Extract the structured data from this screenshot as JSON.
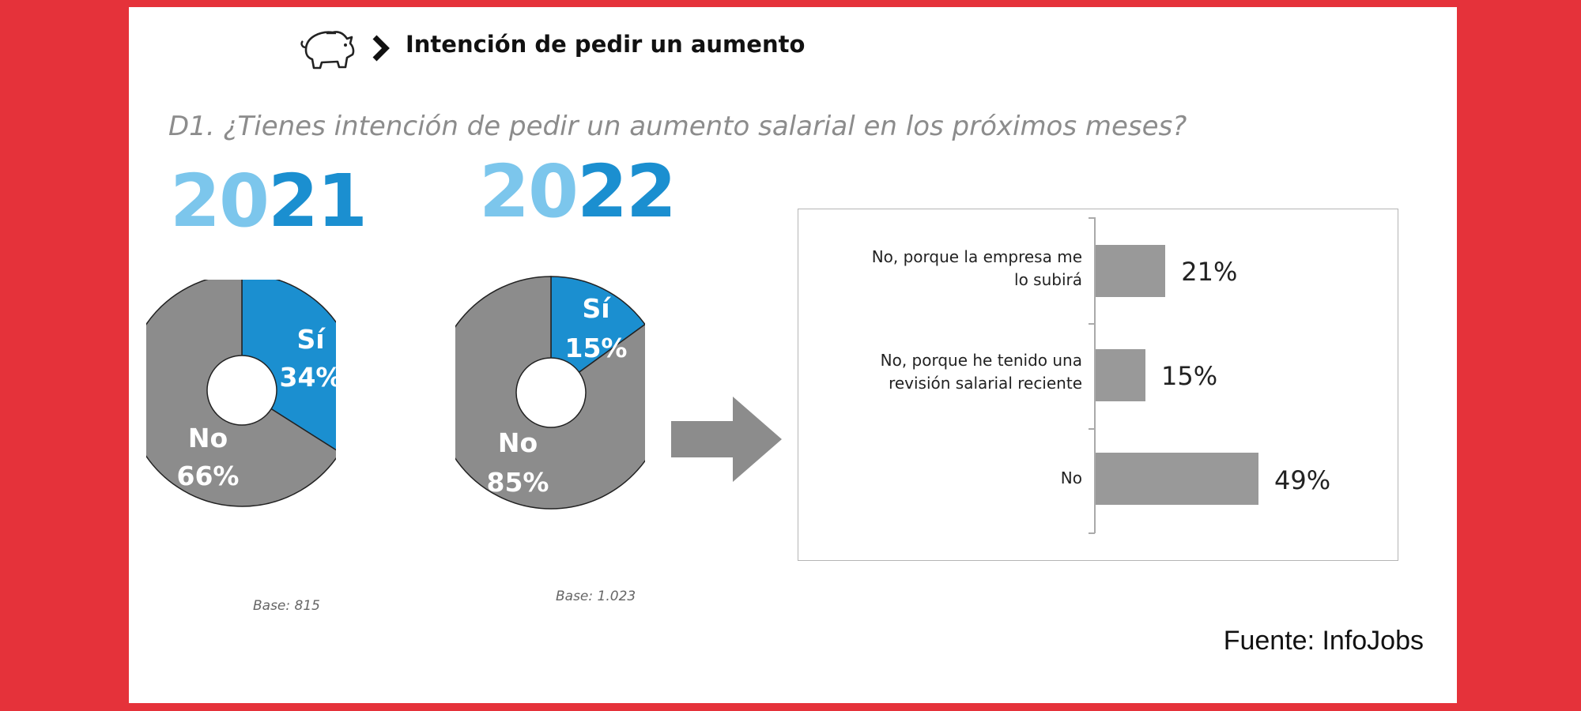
{
  "header": {
    "title": "Intención de pedir un aumento",
    "icon": "piggy-bank-icon"
  },
  "question": "D1. ¿Tienes intención de pedir un aumento salarial en los próximos meses?",
  "colors": {
    "background": "#e5323a",
    "si": "#1b8fd0",
    "no": "#8c8c8c",
    "year_light": "#7cc6ec",
    "bar": "#999999"
  },
  "chart_data": [
    {
      "type": "pie",
      "title": "2021",
      "title_parts": [
        "20",
        "21"
      ],
      "slices": [
        {
          "label": "Sí",
          "value": 34,
          "display": "34%"
        },
        {
          "label": "No",
          "value": 66,
          "display": "66%"
        }
      ],
      "base": "Base: 815"
    },
    {
      "type": "pie",
      "title": "2022",
      "title_parts": [
        "20",
        "22"
      ],
      "slices": [
        {
          "label": "Sí",
          "value": 15,
          "display": "15%"
        },
        {
          "label": "No",
          "value": 85,
          "display": "85%"
        }
      ],
      "base": "Base: 1.023"
    },
    {
      "type": "bar",
      "orientation": "horizontal",
      "categories": [
        [
          "No, porque la empresa me",
          "lo subirá"
        ],
        [
          "No, porque he tenido una",
          "revisión salarial reciente"
        ],
        [
          "No"
        ]
      ],
      "values": [
        21,
        15,
        49
      ],
      "value_labels": [
        "21%",
        "15%",
        "49%"
      ],
      "xlim": [
        0,
        60
      ]
    }
  ],
  "source": "Fuente: InfoJobs"
}
